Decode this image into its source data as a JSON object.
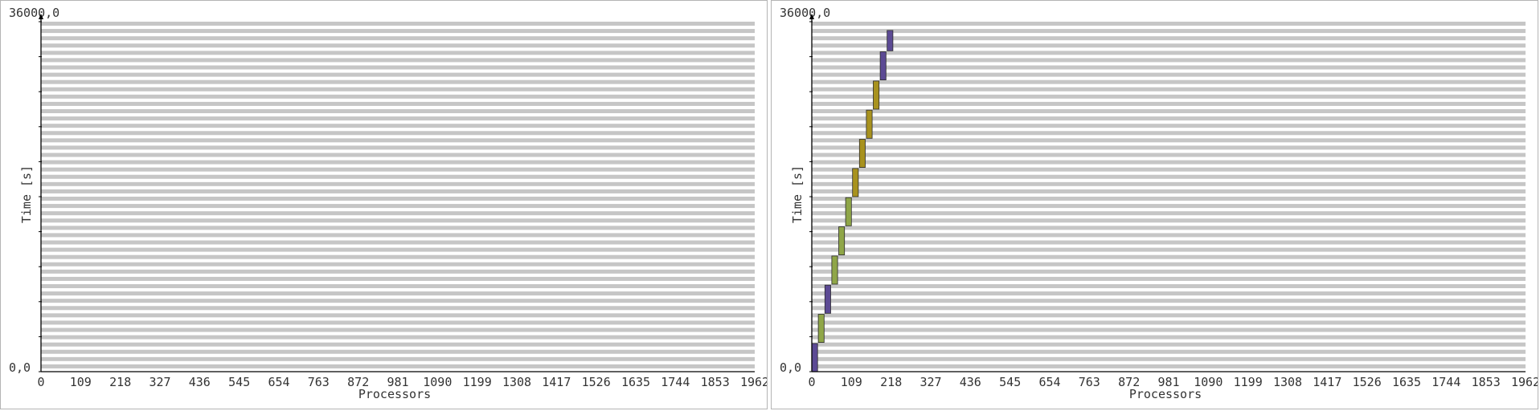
{
  "chart_data": [
    {
      "type": "gantt",
      "xlabel": "Processors",
      "ylabel": "Time [s]",
      "xlim": [
        0,
        1962
      ],
      "ylim": [
        0,
        36000
      ],
      "x_ticks": [
        "0",
        "109",
        "218",
        "327",
        "436",
        "545",
        "654",
        "763",
        "872",
        "981",
        "1090",
        "1199",
        "1308",
        "1417",
        "1526",
        "1635",
        "1744",
        "1853",
        "1962"
      ],
      "y_tick_labels": {
        "bottom": "0,0",
        "top": "36000,0"
      },
      "grid": true,
      "tasks": []
    },
    {
      "type": "gantt",
      "xlabel": "Processors",
      "ylabel": "Time [s]",
      "xlim": [
        0,
        1962
      ],
      "ylim": [
        0,
        36000
      ],
      "x_ticks": [
        "0",
        "109",
        "218",
        "327",
        "436",
        "545",
        "654",
        "763",
        "872",
        "981",
        "1090",
        "1199",
        "1308",
        "1417",
        "1526",
        "1635",
        "1744",
        "1853",
        "1962"
      ],
      "y_tick_labels": {
        "bottom": "0,0",
        "top": "36000,0"
      },
      "grid": true,
      "tasks": [
        {
          "proc_start": 0,
          "proc_end": 16,
          "t_start": 0,
          "t_end": 2900,
          "color": "#5c4a94"
        },
        {
          "proc_start": 18,
          "proc_end": 34,
          "t_start": 3000,
          "t_end": 5900,
          "color": "#8fa648"
        },
        {
          "proc_start": 36,
          "proc_end": 52,
          "t_start": 6000,
          "t_end": 8900,
          "color": "#5c4a94"
        },
        {
          "proc_start": 55,
          "proc_end": 71,
          "t_start": 9000,
          "t_end": 11900,
          "color": "#8fa648"
        },
        {
          "proc_start": 74,
          "proc_end": 90,
          "t_start": 12000,
          "t_end": 14900,
          "color": "#8fa648"
        },
        {
          "proc_start": 93,
          "proc_end": 109,
          "t_start": 15000,
          "t_end": 17900,
          "color": "#8fa648"
        },
        {
          "proc_start": 112,
          "proc_end": 128,
          "t_start": 18000,
          "t_end": 20900,
          "color": "#a8921e"
        },
        {
          "proc_start": 131,
          "proc_end": 147,
          "t_start": 21000,
          "t_end": 23900,
          "color": "#a8921e"
        },
        {
          "proc_start": 150,
          "proc_end": 166,
          "t_start": 24000,
          "t_end": 26900,
          "color": "#a8921e"
        },
        {
          "proc_start": 169,
          "proc_end": 185,
          "t_start": 27000,
          "t_end": 29900,
          "color": "#a8921e"
        },
        {
          "proc_start": 188,
          "proc_end": 204,
          "t_start": 30000,
          "t_end": 32900,
          "color": "#5c4a94"
        },
        {
          "proc_start": 207,
          "proc_end": 223,
          "t_start": 33000,
          "t_end": 35100,
          "color": "#5c4a94"
        }
      ]
    }
  ]
}
